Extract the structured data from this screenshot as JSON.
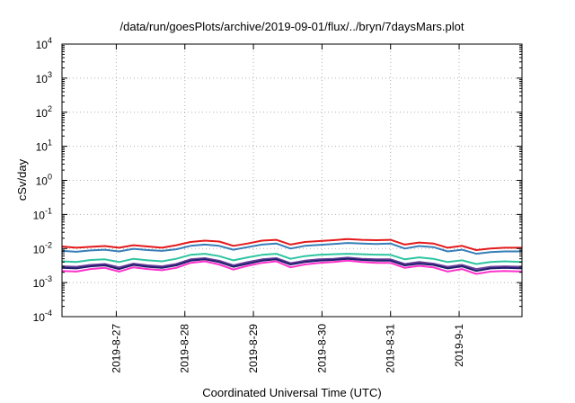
{
  "chart_data": {
    "type": "line",
    "title": "/data/run/goesPlots/archive/2019-09-01/flux/../bryn/7daysMars.plot",
    "xlabel": "Coordinated Universal Time (UTC)",
    "ylabel": "cSv/day",
    "yscale": "log",
    "ylim": [
      0.0001,
      10000
    ],
    "y_ticks": [
      {
        "base": "10",
        "exp": "-4",
        "value": 0.0001
      },
      {
        "base": "10",
        "exp": "-3",
        "value": 0.001
      },
      {
        "base": "10",
        "exp": "-2",
        "value": 0.01
      },
      {
        "base": "10",
        "exp": "-1",
        "value": 0.1
      },
      {
        "base": "10",
        "exp": "0",
        "value": 1
      },
      {
        "base": "10",
        "exp": "1",
        "value": 10
      },
      {
        "base": "10",
        "exp": "2",
        "value": 100
      },
      {
        "base": "10",
        "exp": "3",
        "value": 1000
      },
      {
        "base": "10",
        "exp": "4",
        "value": 10000
      }
    ],
    "xlim": [
      "2019-08-26T05:00",
      "2019-09-01T22:00"
    ],
    "x_ticks": [
      {
        "label": "2019-8-27",
        "value": "2019-08-27"
      },
      {
        "label": "2019-8-28",
        "value": "2019-08-28"
      },
      {
        "label": "2019-8-29",
        "value": "2019-08-29"
      },
      {
        "label": "2019-8-30",
        "value": "2019-08-30"
      },
      {
        "label": "2019-8-31",
        "value": "2019-08-31"
      },
      {
        "label": "2019-9-1",
        "value": "2019-09-01"
      }
    ],
    "grid": true,
    "legend": false,
    "x": [
      "2019-08-26T05:00",
      "2019-08-26T10:00",
      "2019-08-26T15:00",
      "2019-08-26T20:00",
      "2019-08-27T01:00",
      "2019-08-27T06:00",
      "2019-08-27T11:00",
      "2019-08-27T16:00",
      "2019-08-27T21:00",
      "2019-08-28T02:00",
      "2019-08-28T07:00",
      "2019-08-28T12:00",
      "2019-08-28T17:00",
      "2019-08-28T22:00",
      "2019-08-29T03:00",
      "2019-08-29T08:00",
      "2019-08-29T13:00",
      "2019-08-29T18:00",
      "2019-08-29T23:00",
      "2019-08-30T04:00",
      "2019-08-30T09:00",
      "2019-08-30T14:00",
      "2019-08-30T19:00",
      "2019-08-31T00:00",
      "2019-08-31T05:00",
      "2019-08-31T10:00",
      "2019-08-31T15:00",
      "2019-08-31T20:00",
      "2019-09-01T01:00",
      "2019-09-01T06:00",
      "2019-09-01T11:00",
      "2019-09-01T16:00",
      "2019-09-01T22:00"
    ],
    "series": [
      {
        "color": "#e41a1c",
        "values": [
          0.0115,
          0.0105,
          0.0112,
          0.0118,
          0.0105,
          0.0125,
          0.0115,
          0.0105,
          0.0125,
          0.0155,
          0.017,
          0.016,
          0.012,
          0.014,
          0.017,
          0.018,
          0.013,
          0.0155,
          0.0165,
          0.0175,
          0.019,
          0.018,
          0.0175,
          0.018,
          0.013,
          0.015,
          0.014,
          0.0105,
          0.012,
          0.009,
          0.01,
          0.0105,
          0.0105
        ]
      },
      {
        "color": "#377eb8",
        "values": [
          0.0085,
          0.008,
          0.0088,
          0.0092,
          0.0082,
          0.0098,
          0.009,
          0.0085,
          0.0095,
          0.012,
          0.013,
          0.012,
          0.0092,
          0.011,
          0.013,
          0.014,
          0.01,
          0.012,
          0.0128,
          0.0135,
          0.0145,
          0.014,
          0.0135,
          0.014,
          0.01,
          0.0118,
          0.011,
          0.0082,
          0.0092,
          0.007,
          0.0078,
          0.0082,
          0.0082
        ]
      },
      {
        "color": "#2ec4a0",
        "values": [
          0.0042,
          0.004,
          0.0046,
          0.0048,
          0.004,
          0.005,
          0.0045,
          0.0042,
          0.005,
          0.0065,
          0.007,
          0.006,
          0.0045,
          0.0055,
          0.0065,
          0.007,
          0.005,
          0.006,
          0.0065,
          0.0068,
          0.007,
          0.0068,
          0.0066,
          0.0065,
          0.0048,
          0.0055,
          0.005,
          0.004,
          0.0045,
          0.0035,
          0.004,
          0.0042,
          0.004
        ]
      },
      {
        "color": "#6a3d9a",
        "values": [
          0.003,
          0.0029,
          0.0033,
          0.0035,
          0.0028,
          0.0036,
          0.0032,
          0.003,
          0.0035,
          0.0048,
          0.0052,
          0.0044,
          0.0032,
          0.004,
          0.0048,
          0.0052,
          0.0037,
          0.0044,
          0.0048,
          0.005,
          0.0054,
          0.005,
          0.0048,
          0.0048,
          0.0035,
          0.004,
          0.0036,
          0.0029,
          0.0033,
          0.0025,
          0.0029,
          0.003,
          0.0029
        ]
      },
      {
        "color": "#1f1f6e",
        "values": [
          0.0027,
          0.0026,
          0.003,
          0.0032,
          0.0025,
          0.0033,
          0.0029,
          0.0027,
          0.0032,
          0.0044,
          0.0048,
          0.004,
          0.0029,
          0.0036,
          0.0044,
          0.0048,
          0.0034,
          0.004,
          0.0044,
          0.0046,
          0.005,
          0.0046,
          0.0044,
          0.0044,
          0.0032,
          0.0036,
          0.0033,
          0.0026,
          0.003,
          0.0022,
          0.0026,
          0.0027,
          0.0026
        ]
      },
      {
        "color": "#ff33cc",
        "values": [
          0.0022,
          0.0021,
          0.0025,
          0.0027,
          0.0021,
          0.0028,
          0.0025,
          0.0023,
          0.0027,
          0.0038,
          0.0042,
          0.0034,
          0.0024,
          0.0031,
          0.0038,
          0.0042,
          0.0028,
          0.0034,
          0.0038,
          0.004,
          0.0044,
          0.004,
          0.0038,
          0.0038,
          0.0027,
          0.0031,
          0.0028,
          0.0021,
          0.0025,
          0.0018,
          0.0021,
          0.0022,
          0.0021
        ]
      }
    ]
  }
}
